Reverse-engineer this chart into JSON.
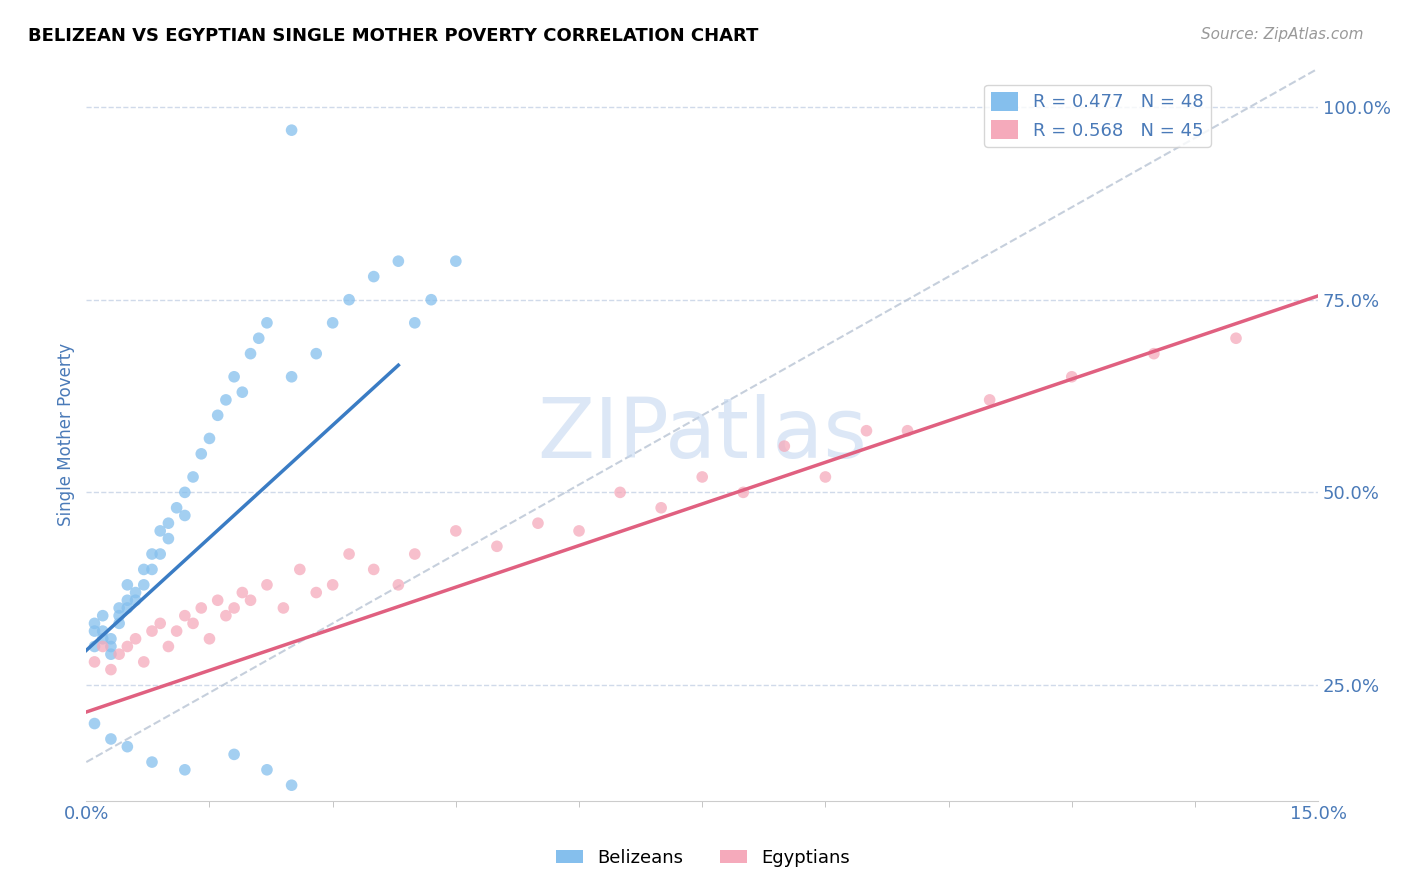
{
  "title": "BELIZEAN VS EGYPTIAN SINGLE MOTHER POVERTY CORRELATION CHART",
  "source_text": "Source: ZipAtlas.com",
  "ylabel": "Single Mother Poverty",
  "xlim": [
    0.0,
    0.15
  ],
  "ylim": [
    0.1,
    1.05
  ],
  "yticks": [
    0.25,
    0.5,
    0.75,
    1.0
  ],
  "ytick_labels": [
    "25.0%",
    "50.0%",
    "75.0%",
    "100.0%"
  ],
  "xtick_labels": [
    "0.0%",
    "15.0%"
  ],
  "legend_entries": [
    {
      "label": "R = 0.477   N = 48"
    },
    {
      "label": "R = 0.568   N = 45"
    }
  ],
  "watermark": "ZIPatlas",
  "watermark_color": "#c5d8f0",
  "blue_color": "#85bfed",
  "pink_color": "#f5aabb",
  "blue_line_color": "#3a7cc4",
  "pink_line_color": "#e06080",
  "axis_label_color": "#4a7ab8",
  "grid_color": "#d0daea",
  "title_fontsize": 13,
  "belizean_x": [
    0.001,
    0.001,
    0.001,
    0.002,
    0.002,
    0.002,
    0.003,
    0.003,
    0.003,
    0.004,
    0.004,
    0.004,
    0.005,
    0.005,
    0.005,
    0.006,
    0.006,
    0.007,
    0.007,
    0.008,
    0.008,
    0.009,
    0.009,
    0.01,
    0.01,
    0.011,
    0.012,
    0.012,
    0.013,
    0.014,
    0.015,
    0.016,
    0.017,
    0.018,
    0.019,
    0.02,
    0.021,
    0.022,
    0.025,
    0.028,
    0.03,
    0.032,
    0.035,
    0.038,
    0.04,
    0.042,
    0.045,
    0.025
  ],
  "belizean_y": [
    0.33,
    0.32,
    0.3,
    0.34,
    0.32,
    0.31,
    0.31,
    0.3,
    0.29,
    0.33,
    0.35,
    0.34,
    0.36,
    0.38,
    0.35,
    0.37,
    0.36,
    0.4,
    0.38,
    0.42,
    0.4,
    0.45,
    0.42,
    0.44,
    0.46,
    0.48,
    0.5,
    0.47,
    0.52,
    0.55,
    0.57,
    0.6,
    0.62,
    0.65,
    0.63,
    0.68,
    0.7,
    0.72,
    0.65,
    0.68,
    0.72,
    0.75,
    0.78,
    0.8,
    0.72,
    0.75,
    0.8,
    0.97
  ],
  "belizean_outliers_x": [
    0.001,
    0.003,
    0.005,
    0.008,
    0.012,
    0.018,
    0.022,
    0.025
  ],
  "belizean_outliers_y": [
    0.2,
    0.18,
    0.17,
    0.15,
    0.14,
    0.16,
    0.14,
    0.12
  ],
  "egyptian_x": [
    0.001,
    0.002,
    0.003,
    0.004,
    0.005,
    0.006,
    0.007,
    0.008,
    0.009,
    0.01,
    0.011,
    0.012,
    0.013,
    0.014,
    0.015,
    0.016,
    0.017,
    0.018,
    0.019,
    0.02,
    0.022,
    0.024,
    0.026,
    0.028,
    0.03,
    0.032,
    0.035,
    0.038,
    0.04,
    0.045,
    0.05,
    0.055,
    0.06,
    0.065,
    0.07,
    0.075,
    0.08,
    0.085,
    0.09,
    0.095,
    0.1,
    0.11,
    0.12,
    0.13,
    0.14
  ],
  "egyptian_y": [
    0.28,
    0.3,
    0.27,
    0.29,
    0.3,
    0.31,
    0.28,
    0.32,
    0.33,
    0.3,
    0.32,
    0.34,
    0.33,
    0.35,
    0.31,
    0.36,
    0.34,
    0.35,
    0.37,
    0.36,
    0.38,
    0.35,
    0.4,
    0.37,
    0.38,
    0.42,
    0.4,
    0.38,
    0.42,
    0.45,
    0.43,
    0.46,
    0.45,
    0.5,
    0.48,
    0.52,
    0.5,
    0.56,
    0.52,
    0.58,
    0.58,
    0.62,
    0.65,
    0.68,
    0.7
  ],
  "blue_line_x": [
    0.0,
    0.038
  ],
  "blue_line_y": [
    0.295,
    0.665
  ],
  "pink_line_x": [
    0.0,
    0.15
  ],
  "pink_line_y": [
    0.215,
    0.755
  ]
}
